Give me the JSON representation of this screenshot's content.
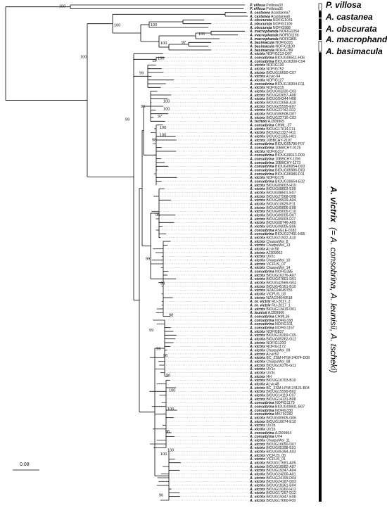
{
  "tips": [
    [
      "P. villosa",
      "Pvillosa33"
    ],
    [
      "P. villosa",
      "Pvillosa35"
    ],
    [
      "A. castanea",
      "Acastanea7"
    ],
    [
      "A. castanea",
      "Acastanea6"
    ],
    [
      "A. obscurata",
      "NOFIG1041"
    ],
    [
      "A. obscurata",
      "NOFIG1106"
    ],
    [
      "A. obscurata",
      "NOFIG988"
    ],
    [
      "A. macrophanda",
      "NOFIG1054"
    ],
    [
      "A. macrophanda",
      "NOFIG1166"
    ],
    [
      "A. macrophanda",
      "NOFIG891"
    ],
    [
      "A. basimacula",
      "NOFIG321"
    ],
    [
      "A. basimacula",
      "NOFIG1100"
    ],
    [
      "A. basimacula",
      "NOFIG789"
    ],
    [
      "A. victrix",
      "NOFIG213-D07"
    ],
    [
      "A. consobrina",
      "BIOUG06511-H06"
    ],
    [
      "A. consobrina",
      "BIOUG16300-C04"
    ],
    [
      "A. victrix",
      "NOFIG130"
    ],
    [
      "A. victrix",
      "NOFIG752"
    ],
    [
      "A. victrix",
      "BIOUG16650-C07"
    ],
    [
      "A. victrix",
      "ALvic-94"
    ],
    [
      "A. victrix",
      "NOFIG127"
    ],
    [
      "A. consobrina",
      "BIOUG16304-D11"
    ],
    [
      "A. victrix",
      "NOFIG315"
    ],
    [
      "A. victrix",
      "BIOUG03330-C03"
    ],
    [
      "A. victrix",
      "BIOUG03657-A08"
    ],
    [
      "A. victrix",
      "BIOUG04344-H08"
    ],
    [
      "A. victrix",
      "BIOUG22058-A10"
    ],
    [
      "A. victrix",
      "BIOUG25595-E07"
    ],
    [
      "A. victrix",
      "BIOUG22742-F02"
    ],
    [
      "A. victrix",
      "BIOUG06508-D07"
    ],
    [
      "A. victrix",
      "BIOUG22716-C03"
    ],
    [
      "A. tscheki",
      "AJ309965"
    ],
    [
      "A. consobrina",
      "CHML_37"
    ],
    [
      "A. victrix",
      "BIOUG17614-F11"
    ],
    [
      "A. victrix",
      "BIOUG21327-H11"
    ],
    [
      "A. victrix",
      "BIOUG21305-H01"
    ],
    [
      "A. victrix",
      "10BBCHY-2197"
    ],
    [
      "A. consobrina",
      "BIOUG05796-F07"
    ],
    [
      "A. consobrina",
      "10BBCHY-0125"
    ],
    [
      "A. victrix",
      "NOFIG317"
    ],
    [
      "A. consobrina",
      "BIOUG08113-D09"
    ],
    [
      "A. consobrina",
      "10BBCHY-1156"
    ],
    [
      "A. consobrina",
      "10BBCHY-1173"
    ],
    [
      "A. consobrina",
      "BIOUG06954-D03"
    ],
    [
      "A. consobrina",
      "BIOUG06986-D03"
    ],
    [
      "A. consobrina",
      "BIOUG06986-D11"
    ],
    [
      "A. victrix",
      "NOFIG175"
    ],
    [
      "A. consobrina",
      "BIOUG39654-E02"
    ],
    [
      "A. victrix",
      "BIOUG09003-H10"
    ],
    [
      "A. victrix",
      "BIOUG08803-E09"
    ],
    [
      "A. victrix",
      "BIOUG08501-E07"
    ],
    [
      "A. victrix",
      "BIOUG27568-D08"
    ],
    [
      "A. victrix",
      "BIOUG09929-A04"
    ],
    [
      "A. victrix",
      "BIOUG10629-E11"
    ],
    [
      "A. victrix",
      "BIOUG09806-E08"
    ],
    [
      "A. victrix",
      "BIOUG09005-C10"
    ],
    [
      "A. victrix",
      "BIOUG09005-D07"
    ],
    [
      "A. victrix",
      "BIOUG09003-F07"
    ],
    [
      "A. victrix",
      "BIOUG08746-A09"
    ],
    [
      "A. victrix",
      "BIOUG09005-B06"
    ],
    [
      "A. consobrina",
      "ASGLE-0182"
    ],
    [
      "A. consobrina",
      "BIOUG27401-H05"
    ],
    [
      "A. victrix",
      "BIOUG21922-A10"
    ],
    [
      "A. victrix",
      "CharpuMol_8"
    ],
    [
      "A. victrix",
      "CharpuMol_13"
    ],
    [
      "A. victrix",
      "ALvic56"
    ],
    [
      "A. victrix",
      "AJ309962"
    ],
    [
      "A. victrix",
      "UV2c"
    ],
    [
      "A. victrix",
      "CharpuMol_10"
    ],
    [
      "A. victrix",
      "VICFUS_07"
    ],
    [
      "A. victrix",
      "CharpuMol_14"
    ],
    [
      "A. consobrina",
      "NOFIG385"
    ],
    [
      "A. victrix",
      "BIOUG16276-A07"
    ],
    [
      "A. victrix",
      "BIOUG07801-D01"
    ],
    [
      "A. victrix",
      "BIOUG42569-G04"
    ],
    [
      "A. victrix",
      "BIOUG45161-B10"
    ],
    [
      "A. victrix",
      "NZAC04049755"
    ],
    [
      "A. victrix",
      "VICFUS_03"
    ],
    [
      "A. victrix",
      "NZAC04049518"
    ],
    [
      "A. nr. victrix",
      "RU-2017_2"
    ],
    [
      "A. nr. victrix",
      "RU-2017_1"
    ],
    [
      "A. victrix",
      "BIOUG13419-D01"
    ],
    [
      "A. leunisii",
      "AJ309966"
    ],
    [
      "A. consobrina",
      "CHML36"
    ],
    [
      "A. consobrina",
      "NOFIG168"
    ],
    [
      "A. consobrina",
      "NOFIG101"
    ],
    [
      "A. consobrina",
      "NOFIG1157"
    ],
    [
      "A. victrix",
      "NOFIG837"
    ],
    [
      "A. victrix",
      "BIOUG16269-C05"
    ],
    [
      "A. victrix",
      "BIOUG05362-G12"
    ],
    [
      "A. victrix",
      "NOFIG1200"
    ],
    [
      "A. victrix",
      "NOFIG1172"
    ],
    [
      "A. victrix",
      "CharpuMol_09"
    ],
    [
      "A. victrix",
      "ALvic52"
    ],
    [
      "A. victrix",
      "BC_ZSM-HYM-24074-D08"
    ],
    [
      "A. victrix",
      "CharpuMol_08"
    ],
    [
      "A. victrix",
      "BIOUG16276-G11"
    ],
    [
      "A. victrix",
      "UV1c"
    ],
    [
      "A. victrix",
      "UV3c"
    ],
    [
      "A. victrix",
      "HH"
    ],
    [
      "A. victrix",
      "BIOUG16703-B10"
    ],
    [
      "A. victrix",
      "ALvic48"
    ],
    [
      "A. victrix",
      "BC_ZSM-HYM-24121-B04"
    ],
    [
      "A. victrix",
      "BIOUG15599-B02"
    ],
    [
      "A. victrix",
      "BIOUG14119-C07"
    ],
    [
      "A. victrix",
      "BIOUG14131-B08"
    ],
    [
      "A. consobrina",
      "NOFIG1179"
    ],
    [
      "A. consobrina",
      "BIOUG09931-B07"
    ],
    [
      "A. consobrina",
      "NOFIG330"
    ],
    [
      "A. consobrina",
      "MK792282"
    ],
    [
      "A. victrix",
      "BIOUG00605-G06"
    ],
    [
      "A. victrix",
      "BIOUG10074-E10"
    ],
    [
      "A. victrix",
      "UV2b"
    ],
    [
      "A. victrix",
      "UV1b"
    ],
    [
      "A. consobrina",
      "AJ309964"
    ],
    [
      "A. consobrina",
      "UV4"
    ],
    [
      "A. victrix",
      "CharpuMol_11"
    ],
    [
      "A. victrix",
      "BIOUG16650-D07"
    ],
    [
      "A. victrix",
      "BIOUG05398-E01"
    ],
    [
      "A. victrix",
      "BIOUG05394-A03"
    ],
    [
      "A. victrix",
      "VICFUS_05"
    ],
    [
      "A. victrix",
      "VICFUS_01"
    ],
    [
      "A. victrix",
      "BIOUG17681-A05"
    ],
    [
      "A. victrix",
      "BIOUG18982-A07"
    ],
    [
      "A. victrix",
      "BIOUG19347-A04"
    ],
    [
      "A. victrix",
      "BIOUG24200-A01"
    ],
    [
      "A. victrix",
      "BIOUG24199-D04"
    ],
    [
      "A. victrix",
      "BIOUG24187-D03"
    ],
    [
      "A. victrix",
      "BIOUG18361-B04"
    ],
    [
      "A. victrix",
      "BIOUG19260-H12"
    ],
    [
      "A. victrix",
      "BIOUG17267-D12"
    ],
    [
      "A. victrix",
      "BIOUG19347-E08"
    ],
    [
      "A. victrix",
      "BIOUG17660-F09"
    ]
  ],
  "bootstrap": {
    "s100a": "100",
    "s100b": "100",
    "s100c": "100",
    "s100d": "100",
    "s100e": "100",
    "s97": "97",
    "s100f": "100",
    "s99a": "99",
    "s100g": "100",
    "s96a": "96",
    "s98a": "98",
    "s100h": "100",
    "s100i": "100",
    "s97b": "97",
    "s96b": "96",
    "s100j": "100",
    "s100k": "100",
    "s98b": "98",
    "s99b": "99",
    "s96c": "96",
    "s98c": "98",
    "s100l": "100",
    "s96d": "96",
    "s99c": "99",
    "s100m": "100",
    "s100n": "100",
    "s96e": "96",
    "s96f": "96",
    "s99d": "99",
    "s100o": "100"
  },
  "clades": {
    "villosa": "P. villosa",
    "castanea": "A. castanea",
    "obscurata": "A. obscurata",
    "macrophanda": "A. macrophanda",
    "basimacula": "A. basimacula",
    "victrix_main": "A. victrix",
    "victrix_rest": " (= A. consobrina, A. leunisii, A. tscheki)"
  },
  "scale": {
    "label": "0.08"
  }
}
